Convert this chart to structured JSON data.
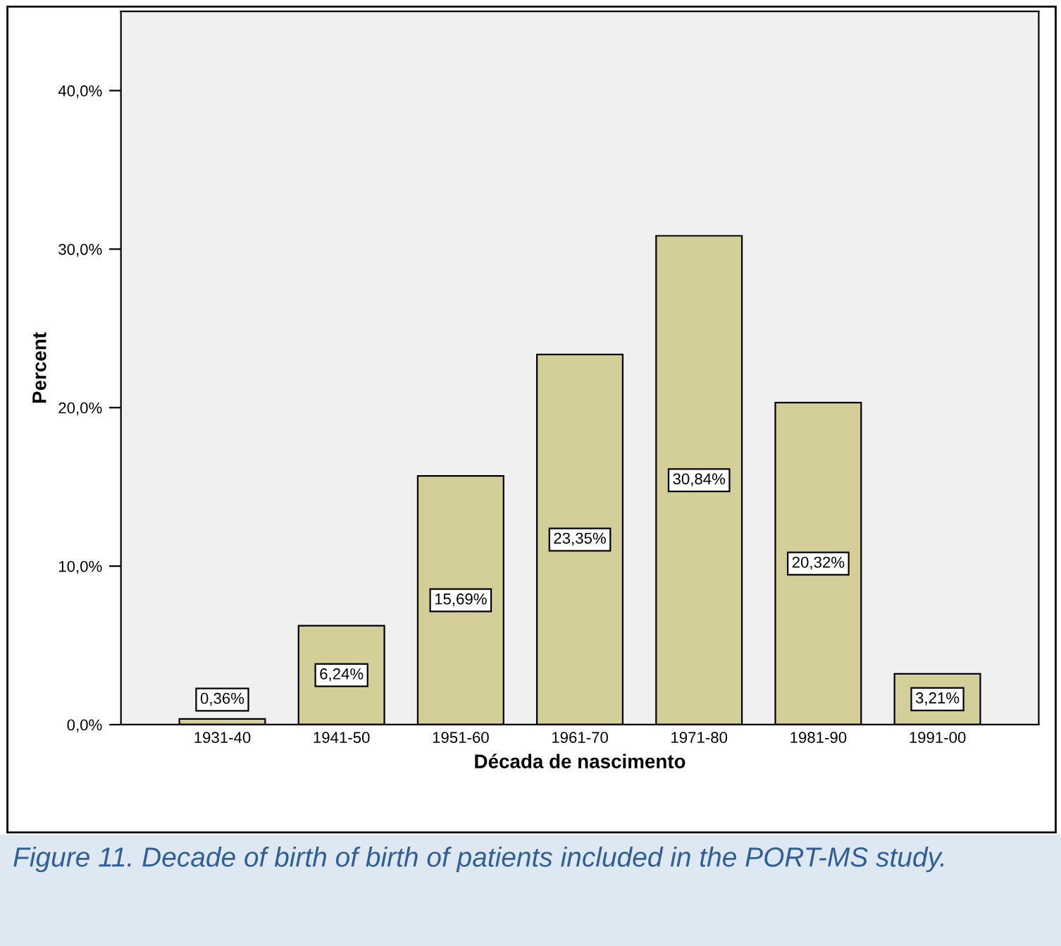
{
  "chart_data": {
    "type": "bar",
    "xlabel": "Década de nascimento",
    "ylabel": "Percent",
    "categories": [
      "1931-40",
      "1941-50",
      "1951-60",
      "1961-70",
      "1971-80",
      "1981-90",
      "1991-00"
    ],
    "values": [
      0.36,
      6.24,
      15.69,
      23.35,
      30.84,
      20.32,
      3.21
    ],
    "value_labels": [
      "0,36%",
      "6,24%",
      "15,69%",
      "23,35%",
      "30,84%",
      "20,32%",
      "3,21%"
    ],
    "color": "#d4cf98",
    "ylim": [
      0,
      45
    ],
    "yticks": [
      {
        "value": 0,
        "label": "0,0%"
      },
      {
        "value": 10,
        "label": "10,0%"
      },
      {
        "value": 20,
        "label": "20,0%"
      },
      {
        "value": 30,
        "label": "30,0%"
      },
      {
        "value": 40,
        "label": "40,0%"
      }
    ],
    "grid": false,
    "legend": false,
    "annotations": [
      "Figure 11. Decade of birth of birth of patients included in the PORT-MS study."
    ]
  }
}
